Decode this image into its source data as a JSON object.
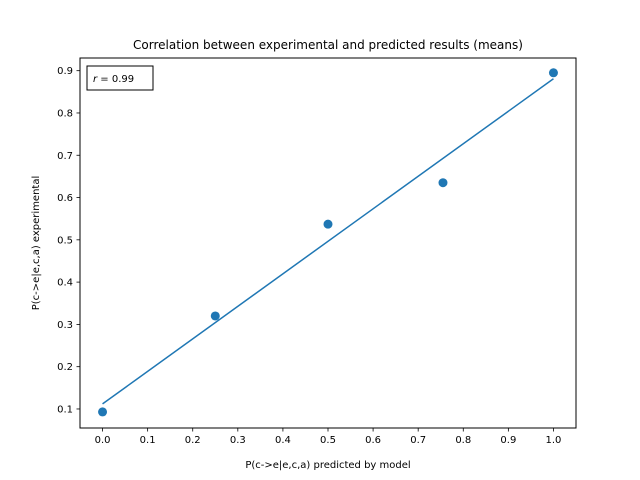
{
  "chart_data": {
    "type": "scatter",
    "title": "Correlation between experimental and predicted results (means)",
    "xlabel": "P(c->e|e,c,a) predicted by model",
    "ylabel": "P(c->e|e,c,a) experimental",
    "xlim": [
      -0.05,
      1.05
    ],
    "ylim": [
      0.055,
      0.93
    ],
    "xticks": [
      0.0,
      0.1,
      0.2,
      0.3,
      0.4,
      0.5,
      0.6,
      0.7,
      0.8,
      0.9,
      1.0
    ],
    "xtick_labels": [
      "0.0",
      "0.1",
      "0.2",
      "0.3",
      "0.4",
      "0.5",
      "0.6",
      "0.7",
      "0.8",
      "0.9",
      "1.0"
    ],
    "yticks": [
      0.1,
      0.2,
      0.3,
      0.4,
      0.5,
      0.6,
      0.7,
      0.8,
      0.9
    ],
    "ytick_labels": [
      "0.1",
      "0.2",
      "0.3",
      "0.4",
      "0.5",
      "0.6",
      "0.7",
      "0.8",
      "0.9"
    ],
    "points": [
      {
        "x": 0.0,
        "y": 0.093
      },
      {
        "x": 0.25,
        "y": 0.32
      },
      {
        "x": 0.5,
        "y": 0.537
      },
      {
        "x": 0.755,
        "y": 0.635
      },
      {
        "x": 1.0,
        "y": 0.895
      }
    ],
    "fit_line": {
      "x": [
        0.0,
        1.0
      ],
      "y": [
        0.112,
        0.881
      ]
    },
    "annotation": {
      "r_symbol": "r",
      "r_text": " = 0.99"
    },
    "grid": false,
    "color": "#1f77b4"
  }
}
